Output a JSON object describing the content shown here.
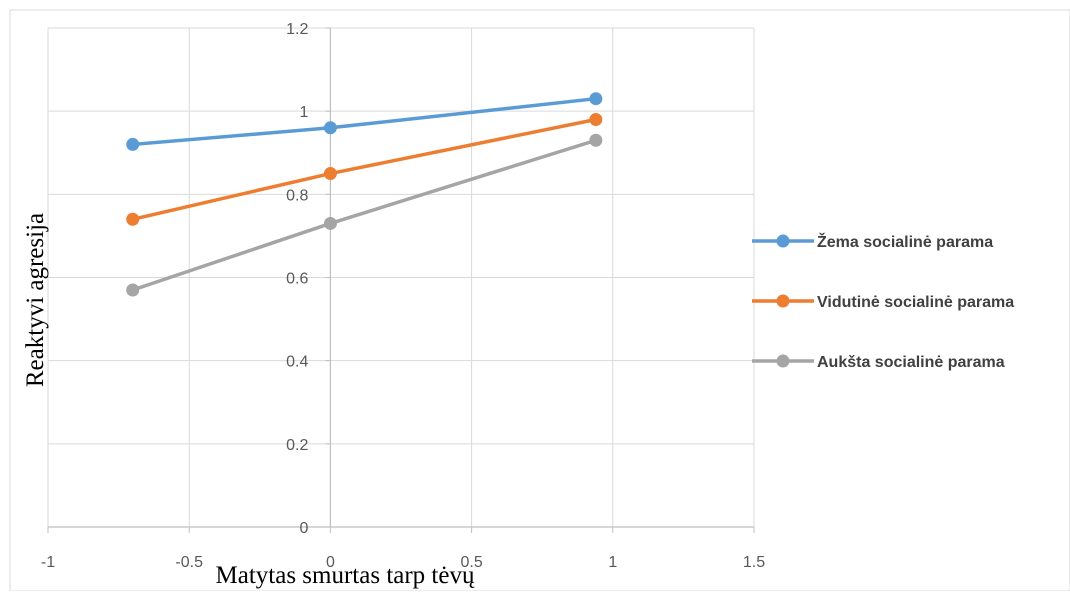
{
  "chart_data": {
    "type": "line",
    "title": "",
    "xlabel": "Matytas smurtas tarp tėvų",
    "ylabel": "Reaktyvi agresija",
    "xlim": [
      -1,
      1.5
    ],
    "ylim": [
      0,
      1.2
    ],
    "x_ticks": [
      "-1",
      "-0.5",
      "0",
      "0.5",
      "1",
      "1.5"
    ],
    "y_ticks": [
      "0",
      "0.2",
      "0.4",
      "0.6",
      "0.8",
      "1",
      "1.2"
    ],
    "grid": true,
    "legend_position": "right",
    "series": [
      {
        "name": "Žema socialinė parama",
        "color": "#5B9BD5",
        "x": [
          -0.7,
          0,
          0.94
        ],
        "y": [
          0.92,
          0.96,
          1.03
        ]
      },
      {
        "name": "Vidutinė socialinė parama",
        "color": "#ED7D31",
        "x": [
          -0.7,
          0,
          0.94
        ],
        "y": [
          0.74,
          0.85,
          0.98
        ]
      },
      {
        "name": "Aukšta socialinė parama",
        "color": "#A5A5A5",
        "x": [
          -0.7,
          0,
          0.94
        ],
        "y": [
          0.57,
          0.73,
          0.93
        ]
      }
    ]
  }
}
